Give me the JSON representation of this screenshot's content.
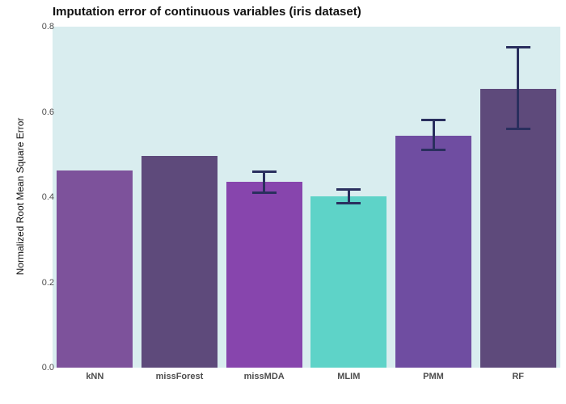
{
  "header": {
    "title": "Imputation error of continuous variables (iris dataset)"
  },
  "axes": {
    "ylabel": "Normalized Root Mean Square Error",
    "xlabel": ""
  },
  "chart_data": {
    "type": "bar",
    "title": "Imputation error of continuous variables (iris dataset)",
    "xlabel": "",
    "ylabel": "Normalized Root Mean Square Error",
    "ylim": [
      0,
      0.8
    ],
    "yticks": [
      "0.0",
      "0.2",
      "0.4",
      "0.6",
      "0.8"
    ],
    "ytick_values": [
      0.0,
      0.2,
      0.4,
      0.6,
      0.8
    ],
    "grid": false,
    "legend": "none",
    "plot_background": "#d9edef",
    "errorbar_color": "#2a2f5e",
    "categories": [
      "kNN",
      "missForest",
      "missMDA",
      "MLIM",
      "PMM",
      "RF"
    ],
    "values": [
      0.463,
      0.497,
      0.436,
      0.401,
      0.545,
      0.655
    ],
    "error_low": [
      null,
      null,
      0.408,
      0.383,
      0.508,
      0.557
    ],
    "error_high": [
      null,
      null,
      0.462,
      0.421,
      0.584,
      0.755
    ],
    "bar_colors": [
      "#7d529b",
      "#5e4a7b",
      "#8745ad",
      "#5ed3c8",
      "#6f4da1",
      "#5e4a7b"
    ]
  }
}
